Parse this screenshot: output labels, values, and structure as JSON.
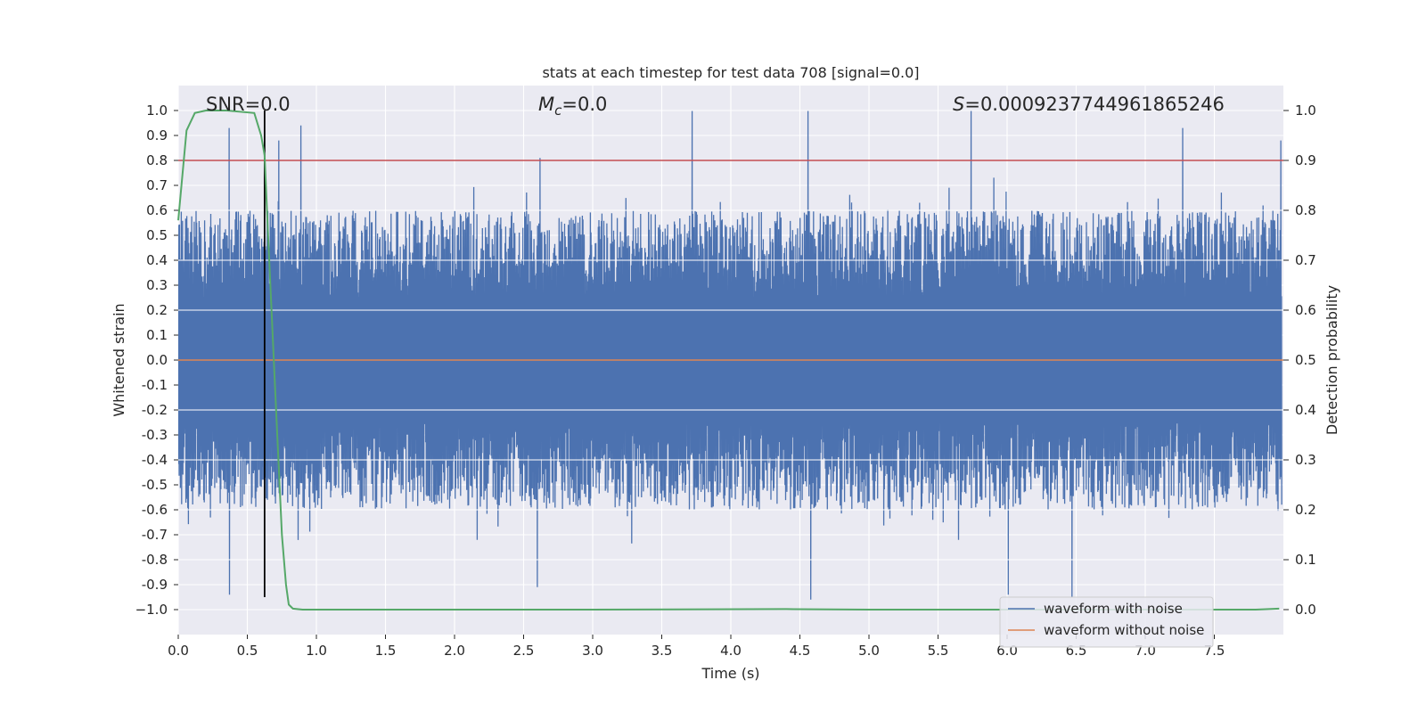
{
  "chart_data": {
    "type": "line",
    "title": "stats at each timestep for test data 708 [signal=0.0]",
    "xlabel": "Time (s)",
    "ylabel": "Whitened strain",
    "y2label": "Detection probability",
    "xlim": [
      0.0,
      8.0
    ],
    "ylim": [
      -1.1,
      1.1
    ],
    "y2lim": [
      -0.05,
      1.05
    ],
    "xticks": [
      0.0,
      0.5,
      1.0,
      1.5,
      2.0,
      2.5,
      3.0,
      3.5,
      4.0,
      4.5,
      5.0,
      5.5,
      6.0,
      6.5,
      7.0,
      7.5
    ],
    "xtick_labels": [
      "0.0",
      "0.5",
      "1.0",
      "1.5",
      "2.0",
      "2.5",
      "3.0",
      "3.5",
      "4.0",
      "4.5",
      "5.0",
      "5.5",
      "6.0",
      "6.5",
      "7.0",
      "7.5"
    ],
    "yticks": [
      1.0,
      0.9,
      0.8,
      0.7,
      0.6,
      0.5,
      0.4,
      0.3,
      0.2,
      0.1,
      0.0,
      -0.1,
      -0.2,
      -0.3,
      -0.4,
      -0.5,
      -0.6,
      -0.7,
      -0.8,
      -0.9,
      -1.0
    ],
    "ytick_labels": [
      "1.0",
      "0.9",
      "0.8",
      "0.7",
      "0.6",
      "0.5",
      "0.4",
      "0.3",
      "0.2",
      "0.1",
      "0.0",
      "-0.1",
      "-0.2",
      "-0.3",
      "-0.4",
      "-0.5",
      "-0.6",
      "-0.7",
      "-0.8",
      "-0.9",
      "−1.0"
    ],
    "y2ticks": [
      1.0,
      0.9,
      0.8,
      0.7,
      0.6,
      0.5,
      0.4,
      0.3,
      0.2,
      0.1,
      0.0
    ],
    "y2tick_labels": [
      "1.0",
      "0.9",
      "0.8",
      "0.7",
      "0.6",
      "0.5",
      "0.4",
      "0.3",
      "0.2",
      "0.1",
      "0.0"
    ],
    "grid": true,
    "legend_position": "lower-right",
    "annotations": {
      "snr": "SNR=0.0",
      "mc_symbol": "M",
      "mc_subscript": "c",
      "mc_value": "=0.0",
      "s_symbol": "S",
      "s_value": "=0.0009237744961865246"
    },
    "threshold_y": 0.8,
    "marker_x": 0.625,
    "series": [
      {
        "name": "waveform with noise",
        "axis": "left",
        "color": "#4c72b0",
        "description": "dense noise time series, typical range about -0.6 to 0.6, spikes up to ~1.0 and down to ~-0.95",
        "typical_upper": 0.55,
        "typical_lower": -0.55,
        "spikes": [
          {
            "x": 0.37,
            "y": 0.93
          },
          {
            "x": 0.37,
            "y": -0.94
          },
          {
            "x": 0.73,
            "y": 0.88
          },
          {
            "x": 0.89,
            "y": 0.94
          },
          {
            "x": 2.62,
            "y": 0.81
          },
          {
            "x": 2.6,
            "y": -0.91
          },
          {
            "x": 3.72,
            "y": 1.0
          },
          {
            "x": 4.56,
            "y": 1.0
          },
          {
            "x": 4.58,
            "y": -0.96
          },
          {
            "x": 5.74,
            "y": 1.0
          },
          {
            "x": 6.01,
            "y": -0.94
          },
          {
            "x": 6.47,
            "y": -0.95
          },
          {
            "x": 7.27,
            "y": 0.93
          },
          {
            "x": 7.98,
            "y": 0.88
          }
        ]
      },
      {
        "name": "waveform without noise",
        "axis": "left",
        "color": "#dd8452",
        "x": [
          0.0,
          8.0
        ],
        "y": [
          0.0,
          0.0
        ]
      },
      {
        "name": "detection probability",
        "axis": "right",
        "color": "#55a868",
        "x": [
          0.0,
          0.06,
          0.12,
          0.2,
          0.35,
          0.55,
          0.6,
          0.625,
          0.65,
          0.7,
          0.75,
          0.78,
          0.8,
          0.83,
          0.9,
          1.5,
          3.0,
          4.4,
          5.0,
          6.5,
          7.8,
          7.97
        ],
        "y": [
          0.78,
          0.96,
          0.995,
          1.0,
          1.0,
          0.995,
          0.95,
          0.91,
          0.75,
          0.45,
          0.15,
          0.05,
          0.01,
          0.002,
          0.0,
          0.0,
          0.0,
          0.001,
          0.0,
          0.0,
          0.0,
          0.002
        ]
      }
    ]
  }
}
